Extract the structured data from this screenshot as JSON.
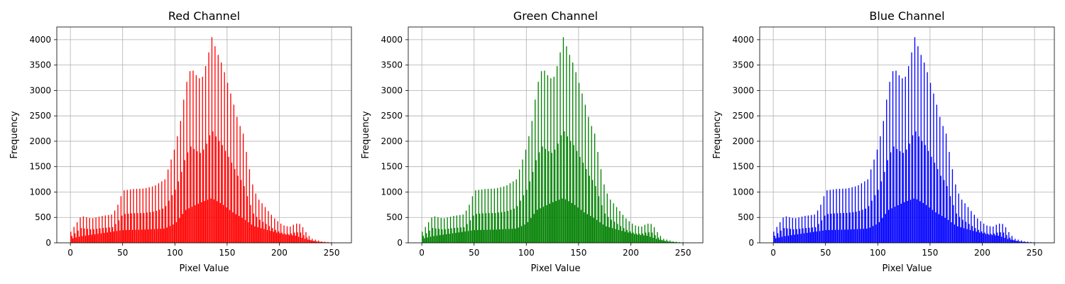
{
  "chart_data": [
    {
      "type": "bar",
      "title": "Red Channel",
      "xlabel": "Pixel Value",
      "ylabel": "Frequency",
      "color": "#ff0000",
      "xlim": [
        -13,
        269
      ],
      "ylim": [
        0,
        4250
      ],
      "xticks": [
        0,
        50,
        100,
        150,
        200,
        250
      ],
      "yticks": [
        0,
        500,
        1000,
        1500,
        2000,
        2500,
        3000,
        3500,
        4000
      ],
      "grid": true,
      "series": [
        {
          "bins": 256,
          "base_profile": [
            [
              0,
              80
            ],
            [
              10,
              130
            ],
            [
              30,
              190
            ],
            [
              50,
              250
            ],
            [
              70,
              260
            ],
            [
              90,
              280
            ],
            [
              100,
              380
            ],
            [
              110,
              650
            ],
            [
              125,
              800
            ],
            [
              135,
              880
            ],
            [
              145,
              760
            ],
            [
              155,
              600
            ],
            [
              165,
              480
            ],
            [
              175,
              330
            ],
            [
              190,
              240
            ],
            [
              205,
              160
            ],
            [
              215,
              140
            ],
            [
              225,
              70
            ],
            [
              235,
              25
            ],
            [
              245,
              6
            ],
            [
              255,
              1
            ]
          ],
          "peak_profile": [
            [
              0,
              220
            ],
            [
              10,
              530
            ],
            [
              20,
              480
            ],
            [
              30,
              530
            ],
            [
              40,
              560
            ],
            [
              45,
              750
            ],
            [
              50,
              1030
            ],
            [
              60,
              1060
            ],
            [
              70,
              1070
            ],
            [
              80,
              1120
            ],
            [
              90,
              1250
            ],
            [
              100,
              1900
            ],
            [
              105,
              2400
            ],
            [
              110,
              3100
            ],
            [
              115,
              3450
            ],
            [
              120,
              3300
            ],
            [
              125,
              3200
            ],
            [
              130,
              3550
            ],
            [
              135,
              4050
            ],
            [
              140,
              3750
            ],
            [
              145,
              3500
            ],
            [
              150,
              3150
            ],
            [
              155,
              2800
            ],
            [
              160,
              2400
            ],
            [
              165,
              2150
            ],
            [
              170,
              1550
            ],
            [
              175,
              1050
            ],
            [
              180,
              850
            ],
            [
              185,
              730
            ],
            [
              190,
              600
            ],
            [
              195,
              480
            ],
            [
              200,
              390
            ],
            [
              205,
              330
            ],
            [
              210,
              320
            ],
            [
              215,
              380
            ],
            [
              220,
              370
            ],
            [
              225,
              210
            ],
            [
              230,
              85
            ],
            [
              240,
              30
            ],
            [
              250,
              8
            ],
            [
              255,
              2
            ]
          ]
        }
      ]
    },
    {
      "type": "bar",
      "title": "Green Channel",
      "xlabel": "Pixel Value",
      "ylabel": "Frequency",
      "color": "#008000",
      "xlim": [
        -13,
        269
      ],
      "ylim": [
        0,
        4250
      ],
      "xticks": [
        0,
        50,
        100,
        150,
        200,
        250
      ],
      "yticks": [
        0,
        500,
        1000,
        1500,
        2000,
        2500,
        3000,
        3500,
        4000
      ],
      "grid": true,
      "series": [
        {
          "bins": 256,
          "base_profile": [
            [
              0,
              80
            ],
            [
              10,
              130
            ],
            [
              30,
              190
            ],
            [
              50,
              250
            ],
            [
              70,
              260
            ],
            [
              90,
              280
            ],
            [
              100,
              380
            ],
            [
              110,
              650
            ],
            [
              125,
              800
            ],
            [
              135,
              880
            ],
            [
              145,
              760
            ],
            [
              155,
              600
            ],
            [
              165,
              480
            ],
            [
              175,
              330
            ],
            [
              190,
              240
            ],
            [
              205,
              160
            ],
            [
              215,
              140
            ],
            [
              225,
              70
            ],
            [
              235,
              25
            ],
            [
              245,
              6
            ],
            [
              255,
              1
            ]
          ],
          "peak_profile": [
            [
              0,
              220
            ],
            [
              10,
              530
            ],
            [
              20,
              480
            ],
            [
              30,
              530
            ],
            [
              40,
              560
            ],
            [
              45,
              750
            ],
            [
              50,
              1030
            ],
            [
              60,
              1060
            ],
            [
              70,
              1070
            ],
            [
              80,
              1120
            ],
            [
              90,
              1250
            ],
            [
              100,
              1900
            ],
            [
              105,
              2400
            ],
            [
              110,
              3100
            ],
            [
              115,
              3450
            ],
            [
              120,
              3300
            ],
            [
              125,
              3200
            ],
            [
              130,
              3550
            ],
            [
              135,
              4050
            ],
            [
              140,
              3750
            ],
            [
              145,
              3500
            ],
            [
              150,
              3150
            ],
            [
              155,
              2800
            ],
            [
              160,
              2400
            ],
            [
              165,
              2150
            ],
            [
              170,
              1550
            ],
            [
              175,
              1050
            ],
            [
              180,
              850
            ],
            [
              185,
              730
            ],
            [
              190,
              600
            ],
            [
              195,
              480
            ],
            [
              200,
              390
            ],
            [
              205,
              330
            ],
            [
              210,
              320
            ],
            [
              215,
              380
            ],
            [
              220,
              370
            ],
            [
              225,
              210
            ],
            [
              230,
              85
            ],
            [
              240,
              30
            ],
            [
              250,
              8
            ],
            [
              255,
              2
            ]
          ]
        }
      ]
    },
    {
      "type": "bar",
      "title": "Blue Channel",
      "xlabel": "Pixel Value",
      "ylabel": "Frequency",
      "color": "#0000ff",
      "xlim": [
        -13,
        269
      ],
      "ylim": [
        0,
        4250
      ],
      "xticks": [
        0,
        50,
        100,
        150,
        200,
        250
      ],
      "yticks": [
        0,
        500,
        1000,
        1500,
        2000,
        2500,
        3000,
        3500,
        4000
      ],
      "grid": true,
      "series": [
        {
          "bins": 256,
          "base_profile": [
            [
              0,
              80
            ],
            [
              10,
              130
            ],
            [
              30,
              190
            ],
            [
              50,
              250
            ],
            [
              70,
              260
            ],
            [
              90,
              280
            ],
            [
              100,
              380
            ],
            [
              110,
              650
            ],
            [
              125,
              800
            ],
            [
              135,
              880
            ],
            [
              145,
              760
            ],
            [
              155,
              600
            ],
            [
              165,
              480
            ],
            [
              175,
              330
            ],
            [
              190,
              240
            ],
            [
              205,
              160
            ],
            [
              215,
              140
            ],
            [
              225,
              70
            ],
            [
              235,
              25
            ],
            [
              245,
              6
            ],
            [
              255,
              1
            ]
          ],
          "peak_profile": [
            [
              0,
              220
            ],
            [
              10,
              530
            ],
            [
              20,
              480
            ],
            [
              30,
              530
            ],
            [
              40,
              560
            ],
            [
              45,
              750
            ],
            [
              50,
              1030
            ],
            [
              60,
              1060
            ],
            [
              70,
              1070
            ],
            [
              80,
              1120
            ],
            [
              90,
              1250
            ],
            [
              100,
              1900
            ],
            [
              105,
              2400
            ],
            [
              110,
              3100
            ],
            [
              115,
              3450
            ],
            [
              120,
              3300
            ],
            [
              125,
              3200
            ],
            [
              130,
              3550
            ],
            [
              135,
              4050
            ],
            [
              140,
              3750
            ],
            [
              145,
              3500
            ],
            [
              150,
              3150
            ],
            [
              155,
              2800
            ],
            [
              160,
              2400
            ],
            [
              165,
              2150
            ],
            [
              170,
              1550
            ],
            [
              175,
              1050
            ],
            [
              180,
              850
            ],
            [
              185,
              730
            ],
            [
              190,
              600
            ],
            [
              195,
              480
            ],
            [
              200,
              390
            ],
            [
              205,
              330
            ],
            [
              210,
              320
            ],
            [
              215,
              380
            ],
            [
              220,
              370
            ],
            [
              225,
              210
            ],
            [
              230,
              85
            ],
            [
              240,
              30
            ],
            [
              250,
              8
            ],
            [
              255,
              2
            ]
          ]
        }
      ]
    }
  ]
}
